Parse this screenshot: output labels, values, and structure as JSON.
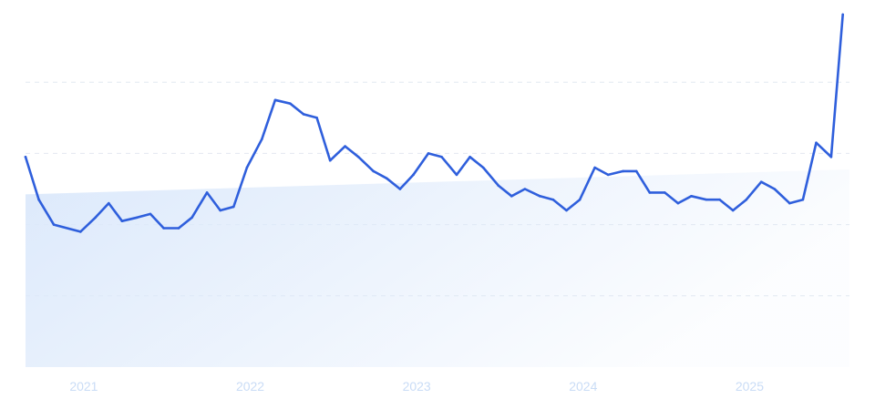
{
  "chart_data": {
    "type": "line",
    "title": "",
    "xlabel": "",
    "ylabel": "",
    "x_ticks": [
      "2021",
      "2022",
      "2023",
      "2024",
      "2025"
    ],
    "x_tick_positions": [
      2021,
      2022,
      2023,
      2024,
      2025
    ],
    "xlim": [
      2020.65,
      2025.6
    ],
    "ylim": [
      0,
      100
    ],
    "grid": {
      "horizontal": true,
      "vertical": false,
      "y_values": [
        20,
        40,
        60,
        80
      ]
    },
    "colors": {
      "line": "#2f5fdc",
      "trend_fill": "#dce9fb",
      "grid": "#e2e8f0",
      "tick": "#c9dcf6"
    },
    "trend": {
      "x": [
        2020.65,
        2025.6
      ],
      "y": [
        48.5,
        55.5
      ]
    },
    "series": [
      {
        "x": [
          2020.65,
          2020.73,
          2020.82,
          2020.98,
          2021.07,
          2021.15,
          2021.23,
          2021.32,
          2021.4,
          2021.48,
          2021.57,
          2021.65,
          2021.74,
          2021.82,
          2021.9,
          2021.98,
          2022.07,
          2022.15,
          2022.24,
          2022.32,
          2022.4,
          2022.48,
          2022.57,
          2022.65,
          2022.74,
          2022.82,
          2022.9,
          2022.98,
          2023.07,
          2023.15,
          2023.24,
          2023.32,
          2023.4,
          2023.49,
          2023.57,
          2023.65,
          2023.74,
          2023.82,
          2023.9,
          2023.98,
          2024.07,
          2024.15,
          2024.24,
          2024.32,
          2024.4,
          2024.49,
          2024.57,
          2024.65,
          2024.74,
          2024.82,
          2024.9,
          2024.98,
          2025.07,
          2025.15,
          2025.24,
          2025.32,
          2025.4,
          2025.49,
          2025.56
        ],
        "y": [
          59,
          47,
          40,
          38,
          42,
          46,
          41,
          42,
          43,
          39,
          39,
          42,
          49,
          44,
          45,
          56,
          64,
          75,
          74,
          71,
          70,
          58,
          62,
          59,
          55,
          53,
          50,
          54,
          60,
          59,
          54,
          59,
          56,
          51,
          48,
          50,
          48,
          47,
          44,
          47,
          56,
          54,
          55,
          55,
          49,
          49,
          46,
          48,
          47,
          47,
          44,
          47,
          52,
          50,
          46,
          47,
          63,
          59,
          99
        ]
      }
    ]
  }
}
